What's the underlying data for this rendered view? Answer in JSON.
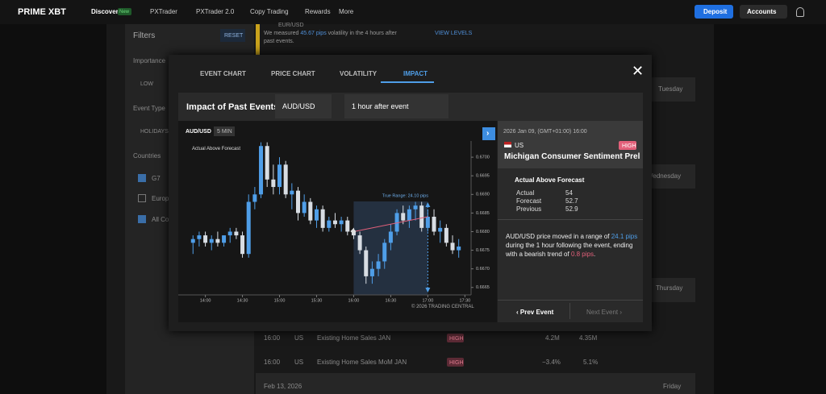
{
  "nav": {
    "logo": "PRIME XBT",
    "items": [
      "Discover",
      "PXTrader",
      "PXTrader 2.0",
      "Copy Trading",
      "Rewards",
      "More"
    ],
    "badge": "New",
    "deposit": "Deposit",
    "accounts": "Accounts"
  },
  "sidebar": {
    "title": "Filters",
    "reset": "RESET",
    "importance": "Importance",
    "low": "LOW",
    "event_type": "Event Type",
    "holidays": "HOLIDAYS",
    "countries": "Countries",
    "country_list": [
      "G7",
      "Europ",
      "All Co"
    ]
  },
  "background": {
    "banner": {
      "pair": "EUR/USD",
      "text_parts": [
        "We measured ",
        "45.67 pips",
        " volatility in the 4 hours after",
        "past events."
      ],
      "link": "VIEW LEVELS"
    },
    "days": [
      "Tuesday",
      "Wednesday",
      "Thursday",
      "Friday"
    ],
    "date": "Feb 13, 2026",
    "rows": [
      [
        "16:00",
        "US",
        "Existing Home Sales JAN",
        "HIGH",
        "4.2M",
        "4.35M"
      ],
      [
        "16:00",
        "US",
        "Existing Home Sales MoM JAN",
        "HIGH",
        "−3.4%",
        "5.1%"
      ]
    ]
  },
  "modal": {
    "tabs": [
      "EVENT CHART",
      "PRICE CHART",
      "VOLATILITY",
      "IMPACT"
    ],
    "header": "Impact of Past Events",
    "pair": "AUD/USD",
    "window": "1 hour after event",
    "panel": {
      "date": "2026 Jan 09, (GMT+01:00) 16:00",
      "country": "US",
      "impact": "HIGH",
      "event": "Michigan Consumer Sentiment Prel",
      "result": "Actual Above Forecast",
      "stats": [
        [
          "Actual",
          "54"
        ],
        [
          "Forecast",
          "52.7"
        ],
        [
          "Previous",
          "52.9"
        ]
      ],
      "summary": [
        "AUD/USD price moved in a range of ",
        "24.1 pips",
        " during the 1 hour following the event, ending with a bearish trend of ",
        "0.8 pips",
        "."
      ],
      "prev": "Prev Event",
      "next": "Next Event"
    }
  },
  "chart_data": {
    "type": "candlestick",
    "title": "AUD/USD",
    "timeframe": "5 MIN",
    "legend": "Actual Above Forecast",
    "annotation": "True Range: 24.10 pips",
    "credit": "© 2026 TRADING CENTRAL",
    "up_color": "#4f9ee8",
    "down_color": "#d8dde3",
    "x": [
      "13:50",
      "13:55",
      "14:00",
      "14:05",
      "14:10",
      "14:15",
      "14:20",
      "14:25",
      "14:30",
      "14:35",
      "14:40",
      "14:45",
      "14:50",
      "14:55",
      "15:00",
      "15:05",
      "15:10",
      "15:15",
      "15:20",
      "15:25",
      "15:30",
      "15:35",
      "15:40",
      "15:45",
      "15:50",
      "15:55",
      "16:00",
      "16:05",
      "16:10",
      "16:15",
      "16:20",
      "16:25",
      "16:30",
      "16:35",
      "16:40",
      "16:45",
      "16:50",
      "16:55",
      "17:00",
      "17:05",
      "17:10",
      "17:15",
      "17:20",
      "17:25"
    ],
    "open": [
      0.6677,
      0.6678,
      0.6679,
      0.6677,
      0.6678,
      0.6677,
      0.6679,
      0.668,
      0.6679,
      0.6674,
      0.6688,
      0.669,
      0.6703,
      0.6694,
      0.6692,
      0.6698,
      0.669,
      0.6691,
      0.6685,
      0.6688,
      0.6683,
      0.6686,
      0.6681,
      0.6683,
      0.6682,
      0.6683,
      0.668,
      0.6679,
      0.6675,
      0.6668,
      0.667,
      0.6672,
      0.6677,
      0.668,
      0.6685,
      0.6683,
      0.6686,
      0.6687,
      0.6681,
      0.6684,
      0.668,
      0.6681,
      0.6677,
      0.6675
    ],
    "high": [
      0.6679,
      0.668,
      0.668,
      0.6679,
      0.668,
      0.6679,
      0.6681,
      0.6681,
      0.668,
      0.669,
      0.6692,
      0.6704,
      0.6704,
      0.6698,
      0.67,
      0.6699,
      0.6693,
      0.6692,
      0.669,
      0.6689,
      0.6687,
      0.6687,
      0.6684,
      0.6685,
      0.6684,
      0.6684,
      0.6681,
      0.668,
      0.6676,
      0.6672,
      0.6674,
      0.6678,
      0.6682,
      0.6686,
      0.6687,
      0.6687,
      0.6688,
      0.6688,
      0.6686,
      0.6686,
      0.6683,
      0.6682,
      0.6679,
      0.6678
    ],
    "low": [
      0.6674,
      0.6676,
      0.6676,
      0.6675,
      0.6676,
      0.6676,
      0.6677,
      0.6678,
      0.6673,
      0.6673,
      0.6686,
      0.6689,
      0.6692,
      0.669,
      0.669,
      0.6689,
      0.6686,
      0.6683,
      0.6684,
      0.6682,
      0.6681,
      0.668,
      0.668,
      0.6681,
      0.668,
      0.6679,
      0.6678,
      0.6674,
      0.6666,
      0.6666,
      0.6668,
      0.667,
      0.6675,
      0.6679,
      0.6682,
      0.6681,
      0.6683,
      0.668,
      0.668,
      0.6679,
      0.6677,
      0.6676,
      0.6674,
      0.6673
    ],
    "close": [
      0.6678,
      0.6679,
      0.6677,
      0.6678,
      0.6677,
      0.6679,
      0.668,
      0.6679,
      0.6674,
      0.6688,
      0.669,
      0.6703,
      0.6694,
      0.6692,
      0.6698,
      0.669,
      0.6691,
      0.6685,
      0.6688,
      0.6683,
      0.6686,
      0.6681,
      0.6683,
      0.6682,
      0.6683,
      0.668,
      0.6679,
      0.6675,
      0.6668,
      0.667,
      0.6672,
      0.6677,
      0.668,
      0.6685,
      0.6683,
      0.6686,
      0.6687,
      0.6681,
      0.6684,
      0.668,
      0.6681,
      0.6677,
      0.6675,
      0.6676
    ],
    "xlim": [
      "13:42",
      "17:35"
    ],
    "xticks": [
      "14:00",
      "14:30",
      "15:00",
      "15:30",
      "16:00",
      "16:30",
      "17:00",
      "17:30"
    ],
    "ylim": [
      0.6663,
      0.6705
    ],
    "yticks": [
      0.6665,
      {
        "value": 0.667,
        "label": "0.6670"
      },
      0.6675,
      {
        "value": 0.668,
        "label": "0.6680"
      },
      0.6685,
      {
        "value": 0.669,
        "label": "0.6690"
      },
      0.6695,
      {
        "value": 0.67,
        "label": "0.6700"
      }
    ]
  }
}
